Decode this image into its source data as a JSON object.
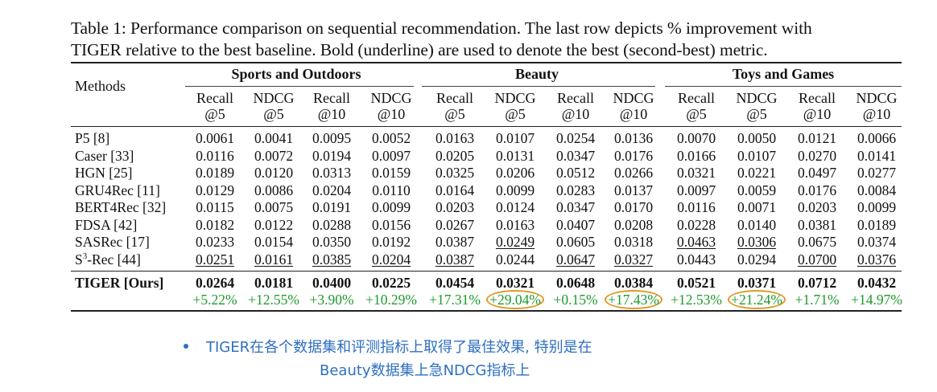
{
  "caption": {
    "line1": "Table 1: Performance comparison on sequential recommendation. The last row depicts % improvement with",
    "line2": "TIGER relative to the best baseline. Bold (underline) are used to denote the best (second-best) metric."
  },
  "header": {
    "methods": "Methods",
    "groups": [
      "Sports and Outdoors",
      "Beauty",
      "Toys and Games"
    ],
    "columns": [
      {
        "top": "Recall",
        "bottom": "@5"
      },
      {
        "top": "NDCG",
        "bottom": "@5"
      },
      {
        "top": "Recall",
        "bottom": "@10"
      },
      {
        "top": "NDCG",
        "bottom": "@10"
      }
    ]
  },
  "rows": [
    {
      "name": "P5 [8]",
      "values": [
        "0.0061",
        "0.0041",
        "0.0095",
        "0.0052",
        "0.0163",
        "0.0107",
        "0.0254",
        "0.0136",
        "0.0070",
        "0.0050",
        "0.0121",
        "0.0066"
      ],
      "underline": []
    },
    {
      "name": "Caser [33]",
      "values": [
        "0.0116",
        "0.0072",
        "0.0194",
        "0.0097",
        "0.0205",
        "0.0131",
        "0.0347",
        "0.0176",
        "0.0166",
        "0.0107",
        "0.0270",
        "0.0141"
      ],
      "underline": []
    },
    {
      "name": "HGN [25]",
      "values": [
        "0.0189",
        "0.0120",
        "0.0313",
        "0.0159",
        "0.0325",
        "0.0206",
        "0.0512",
        "0.0266",
        "0.0321",
        "0.0221",
        "0.0497",
        "0.0277"
      ],
      "underline": []
    },
    {
      "name": "GRU4Rec [11]",
      "values": [
        "0.0129",
        "0.0086",
        "0.0204",
        "0.0110",
        "0.0164",
        "0.0099",
        "0.0283",
        "0.0137",
        "0.0097",
        "0.0059",
        "0.0176",
        "0.0084"
      ],
      "underline": []
    },
    {
      "name": "BERT4Rec [32]",
      "values": [
        "0.0115",
        "0.0075",
        "0.0191",
        "0.0099",
        "0.0203",
        "0.0124",
        "0.0347",
        "0.0170",
        "0.0116",
        "0.0071",
        "0.0203",
        "0.0099"
      ],
      "underline": []
    },
    {
      "name": "FDSA [42]",
      "values": [
        "0.0182",
        "0.0122",
        "0.0288",
        "0.0156",
        "0.0267",
        "0.0163",
        "0.0407",
        "0.0208",
        "0.0228",
        "0.0140",
        "0.0381",
        "0.0189"
      ],
      "underline": []
    },
    {
      "name": "SASRec [17]",
      "values": [
        "0.0233",
        "0.0154",
        "0.0350",
        "0.0192",
        "0.0387",
        "0.0249",
        "0.0605",
        "0.0318",
        "0.0463",
        "0.0306",
        "0.0675",
        "0.0374"
      ],
      "underline": [
        5,
        8,
        9
      ]
    },
    {
      "name_prefix": "S",
      "name_sup": "3",
      "name_suffix": "-Rec [44]",
      "values": [
        "0.0251",
        "0.0161",
        "0.0385",
        "0.0204",
        "0.0387",
        "0.0244",
        "0.0647",
        "0.0327",
        "0.0443",
        "0.0294",
        "0.0700",
        "0.0376"
      ],
      "underline": [
        0,
        1,
        2,
        3,
        4,
        6,
        7,
        10,
        11
      ]
    }
  ],
  "tiger": {
    "name": "TIGER [Ours]",
    "values": [
      "0.0264",
      "0.0181",
      "0.0400",
      "0.0225",
      "0.0454",
      "0.0321",
      "0.0648",
      "0.0384",
      "0.0521",
      "0.0371",
      "0.0712",
      "0.0432"
    ]
  },
  "improvement": {
    "values": [
      "+5.22%",
      "+12.55%",
      "+3.90%",
      "+10.29%",
      "+17.31%",
      "+29.04%",
      "+0.15%",
      "+17.43%",
      "+12.53%",
      "+21.24%",
      "+1.71%",
      "+14.97%"
    ],
    "highlighted": [
      5,
      7,
      9
    ],
    "text_color": "#1e9a2a",
    "highlight_color": "#e09a2a"
  },
  "note": {
    "line1": "TIGER在各个数据集和评测指标上取得了最佳效果, 特别是在",
    "line2": "Beauty数据集上急NDCG指标上",
    "color": "#2f6fc0"
  }
}
